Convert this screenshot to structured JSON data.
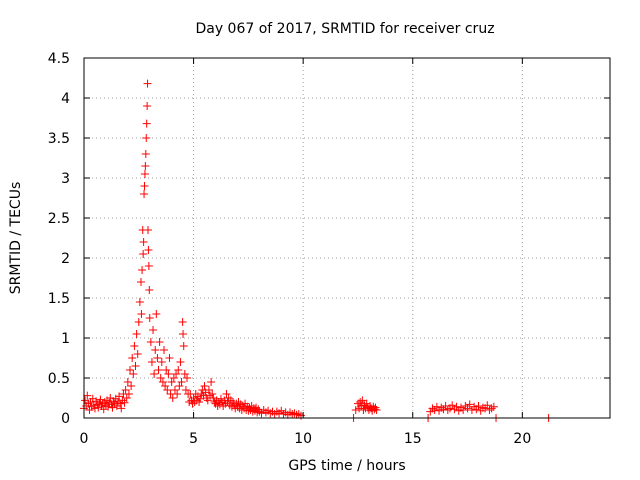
{
  "chart_data": {
    "type": "scatter",
    "title": "Day 067 of 2017, SRMTID for receiver cruz",
    "xlabel": "GPS time / hours",
    "ylabel": "SRMTID / TECUs",
    "xlim": [
      0,
      24
    ],
    "ylim": [
      0,
      4.5
    ],
    "xticks": [
      0,
      5,
      10,
      15,
      20
    ],
    "xtick_labels": [
      "0",
      "5",
      "10",
      "15",
      "20"
    ],
    "yticks": [
      0,
      0.5,
      1,
      1.5,
      2,
      2.5,
      3,
      3.5,
      4,
      4.5
    ],
    "ytick_labels": [
      "0",
      "0.5",
      "1",
      "1.5",
      "2",
      "2.5",
      "3",
      "3.5",
      "4",
      "4.5"
    ],
    "grid": true,
    "marker": "+",
    "series": [
      {
        "name": "SRMTID",
        "color": "#ff0000",
        "points": [
          [
            0.0,
            0.12
          ],
          [
            0.05,
            0.22
          ],
          [
            0.1,
            0.15
          ],
          [
            0.15,
            0.28
          ],
          [
            0.2,
            0.18
          ],
          [
            0.25,
            0.1
          ],
          [
            0.3,
            0.2
          ],
          [
            0.35,
            0.14
          ],
          [
            0.4,
            0.24
          ],
          [
            0.45,
            0.16
          ],
          [
            0.5,
            0.12
          ],
          [
            0.55,
            0.21
          ],
          [
            0.6,
            0.17
          ],
          [
            0.65,
            0.13
          ],
          [
            0.7,
            0.19
          ],
          [
            0.75,
            0.23
          ],
          [
            0.8,
            0.15
          ],
          [
            0.85,
            0.18
          ],
          [
            0.9,
            0.11
          ],
          [
            0.95,
            0.2
          ],
          [
            1.0,
            0.16
          ],
          [
            1.05,
            0.22
          ],
          [
            1.1,
            0.14
          ],
          [
            1.15,
            0.19
          ],
          [
            1.2,
            0.25
          ],
          [
            1.25,
            0.17
          ],
          [
            1.3,
            0.13
          ],
          [
            1.35,
            0.21
          ],
          [
            1.4,
            0.18
          ],
          [
            1.45,
            0.24
          ],
          [
            1.5,
            0.15
          ],
          [
            1.55,
            0.2
          ],
          [
            1.6,
            0.27
          ],
          [
            1.65,
            0.18
          ],
          [
            1.7,
            0.12
          ],
          [
            1.75,
            0.22
          ],
          [
            1.8,
            0.3
          ],
          [
            1.85,
            0.19
          ],
          [
            1.9,
            0.35
          ],
          [
            1.95,
            0.25
          ],
          [
            2.0,
            0.45
          ],
          [
            2.05,
            0.3
          ],
          [
            2.1,
            0.6
          ],
          [
            2.15,
            0.4
          ],
          [
            2.2,
            0.75
          ],
          [
            2.25,
            0.55
          ],
          [
            2.3,
            0.9
          ],
          [
            2.35,
            0.65
          ],
          [
            2.4,
            1.05
          ],
          [
            2.45,
            0.8
          ],
          [
            2.5,
            1.2
          ],
          [
            2.55,
            1.45
          ],
          [
            2.6,
            1.7
          ],
          [
            2.62,
            1.3
          ],
          [
            2.65,
            1.85
          ],
          [
            2.68,
            2.35
          ],
          [
            2.7,
            2.05
          ],
          [
            2.72,
            2.2
          ],
          [
            2.74,
            2.8
          ],
          [
            2.76,
            2.9
          ],
          [
            2.78,
            3.05
          ],
          [
            2.8,
            3.15
          ],
          [
            2.82,
            3.3
          ],
          [
            2.84,
            3.5
          ],
          [
            2.86,
            3.68
          ],
          [
            2.88,
            3.9
          ],
          [
            2.9,
            4.18
          ],
          [
            2.92,
            2.35
          ],
          [
            2.94,
            2.1
          ],
          [
            2.96,
            1.9
          ],
          [
            2.98,
            1.6
          ],
          [
            3.0,
            1.25
          ],
          [
            3.05,
            0.95
          ],
          [
            3.1,
            0.7
          ],
          [
            3.15,
            1.1
          ],
          [
            3.2,
            0.55
          ],
          [
            3.25,
            0.85
          ],
          [
            3.3,
            1.3
          ],
          [
            3.35,
            0.75
          ],
          [
            3.4,
            0.6
          ],
          [
            3.45,
            0.95
          ],
          [
            3.5,
            0.5
          ],
          [
            3.55,
            0.7
          ],
          [
            3.6,
            0.45
          ],
          [
            3.65,
            0.85
          ],
          [
            3.7,
            0.4
          ],
          [
            3.75,
            0.6
          ],
          [
            3.8,
            0.35
          ],
          [
            3.85,
            0.55
          ],
          [
            3.9,
            0.75
          ],
          [
            3.95,
            0.3
          ],
          [
            4.0,
            0.45
          ],
          [
            4.05,
            0.25
          ],
          [
            4.1,
            0.5
          ],
          [
            4.15,
            0.35
          ],
          [
            4.2,
            0.55
          ],
          [
            4.25,
            0.3
          ],
          [
            4.3,
            0.6
          ],
          [
            4.35,
            0.4
          ],
          [
            4.4,
            0.7
          ],
          [
            4.45,
            0.45
          ],
          [
            4.5,
            1.2
          ],
          [
            4.52,
            1.05
          ],
          [
            4.55,
            0.9
          ],
          [
            4.6,
            0.55
          ],
          [
            4.65,
            0.35
          ],
          [
            4.7,
            0.5
          ],
          [
            4.75,
            0.3
          ],
          [
            4.8,
            0.2
          ],
          [
            4.85,
            0.3
          ],
          [
            4.9,
            0.22
          ],
          [
            4.95,
            0.18
          ],
          [
            5.0,
            0.25
          ],
          [
            5.05,
            0.2
          ],
          [
            5.1,
            0.3
          ],
          [
            5.15,
            0.22
          ],
          [
            5.2,
            0.27
          ],
          [
            5.25,
            0.2
          ],
          [
            5.3,
            0.24
          ],
          [
            5.35,
            0.3
          ],
          [
            5.4,
            0.35
          ],
          [
            5.45,
            0.28
          ],
          [
            5.5,
            0.4
          ],
          [
            5.55,
            0.32
          ],
          [
            5.6,
            0.25
          ],
          [
            5.65,
            0.22
          ],
          [
            5.7,
            0.35
          ],
          [
            5.75,
            0.28
          ],
          [
            5.8,
            0.45
          ],
          [
            5.85,
            0.3
          ],
          [
            5.9,
            0.25
          ],
          [
            5.95,
            0.2
          ],
          [
            6.0,
            0.18
          ],
          [
            6.05,
            0.22
          ],
          [
            6.1,
            0.15
          ],
          [
            6.15,
            0.2
          ],
          [
            6.2,
            0.17
          ],
          [
            6.25,
            0.24
          ],
          [
            6.3,
            0.19
          ],
          [
            6.35,
            0.15
          ],
          [
            6.4,
            0.22
          ],
          [
            6.45,
            0.18
          ],
          [
            6.5,
            0.3
          ],
          [
            6.55,
            0.2
          ],
          [
            6.6,
            0.25
          ],
          [
            6.65,
            0.16
          ],
          [
            6.7,
            0.22
          ],
          [
            6.75,
            0.14
          ],
          [
            6.8,
            0.2
          ],
          [
            6.85,
            0.16
          ],
          [
            6.9,
            0.12
          ],
          [
            6.95,
            0.18
          ],
          [
            7.0,
            0.14
          ],
          [
            7.05,
            0.2
          ],
          [
            7.1,
            0.12
          ],
          [
            7.15,
            0.17
          ],
          [
            7.2,
            0.1
          ],
          [
            7.25,
            0.15
          ],
          [
            7.3,
            0.12
          ],
          [
            7.35,
            0.18
          ],
          [
            7.4,
            0.1
          ],
          [
            7.45,
            0.14
          ],
          [
            7.5,
            0.09
          ],
          [
            7.55,
            0.13
          ],
          [
            7.6,
            0.1
          ],
          [
            7.65,
            0.15
          ],
          [
            7.7,
            0.08
          ],
          [
            7.75,
            0.12
          ],
          [
            7.8,
            0.09
          ],
          [
            7.85,
            0.13
          ],
          [
            7.9,
            0.07
          ],
          [
            7.95,
            0.11
          ],
          [
            8.0,
            0.08
          ],
          [
            8.1,
            0.06
          ],
          [
            8.2,
            0.1
          ],
          [
            8.3,
            0.07
          ],
          [
            8.4,
            0.09
          ],
          [
            8.5,
            0.06
          ],
          [
            8.6,
            0.08
          ],
          [
            8.7,
            0.05
          ],
          [
            8.8,
            0.08
          ],
          [
            8.9,
            0.06
          ],
          [
            9.0,
            0.09
          ],
          [
            9.1,
            0.05
          ],
          [
            9.2,
            0.07
          ],
          [
            9.3,
            0.04
          ],
          [
            9.4,
            0.07
          ],
          [
            9.5,
            0.05
          ],
          [
            9.6,
            0.06
          ],
          [
            9.7,
            0.04
          ],
          [
            9.8,
            0.05
          ],
          [
            9.9,
            0.03
          ],
          [
            12.3,
            0.0
          ],
          [
            12.4,
            0.1
          ],
          [
            12.5,
            0.18
          ],
          [
            12.55,
            0.12
          ],
          [
            12.6,
            0.2
          ],
          [
            12.65,
            0.15
          ],
          [
            12.7,
            0.22
          ],
          [
            12.75,
            0.1
          ],
          [
            12.8,
            0.16
          ],
          [
            12.85,
            0.12
          ],
          [
            12.9,
            0.18
          ],
          [
            12.95,
            0.13
          ],
          [
            13.0,
            0.1
          ],
          [
            13.05,
            0.15
          ],
          [
            13.1,
            0.12
          ],
          [
            13.15,
            0.09
          ],
          [
            13.2,
            0.14
          ],
          [
            13.25,
            0.11
          ],
          [
            13.3,
            0.13
          ],
          [
            13.35,
            0.1
          ],
          [
            15.7,
            0.0
          ],
          [
            15.8,
            0.08
          ],
          [
            15.9,
            0.12
          ],
          [
            16.0,
            0.1
          ],
          [
            16.1,
            0.14
          ],
          [
            16.2,
            0.09
          ],
          [
            16.3,
            0.13
          ],
          [
            16.4,
            0.11
          ],
          [
            16.5,
            0.15
          ],
          [
            16.6,
            0.1
          ],
          [
            16.7,
            0.12
          ],
          [
            16.8,
            0.16
          ],
          [
            16.9,
            0.11
          ],
          [
            17.0,
            0.14
          ],
          [
            17.1,
            0.09
          ],
          [
            17.2,
            0.13
          ],
          [
            17.3,
            0.1
          ],
          [
            17.4,
            0.15
          ],
          [
            17.5,
            0.12
          ],
          [
            17.6,
            0.17
          ],
          [
            17.7,
            0.1
          ],
          [
            17.8,
            0.14
          ],
          [
            17.9,
            0.11
          ],
          [
            18.0,
            0.15
          ],
          [
            18.1,
            0.09
          ],
          [
            18.2,
            0.13
          ],
          [
            18.3,
            0.12
          ],
          [
            18.4,
            0.16
          ],
          [
            18.5,
            0.1
          ],
          [
            18.6,
            0.12
          ],
          [
            18.7,
            0.14
          ],
          [
            18.8,
            0.0
          ],
          [
            21.2,
            0.0
          ]
        ]
      }
    ]
  }
}
